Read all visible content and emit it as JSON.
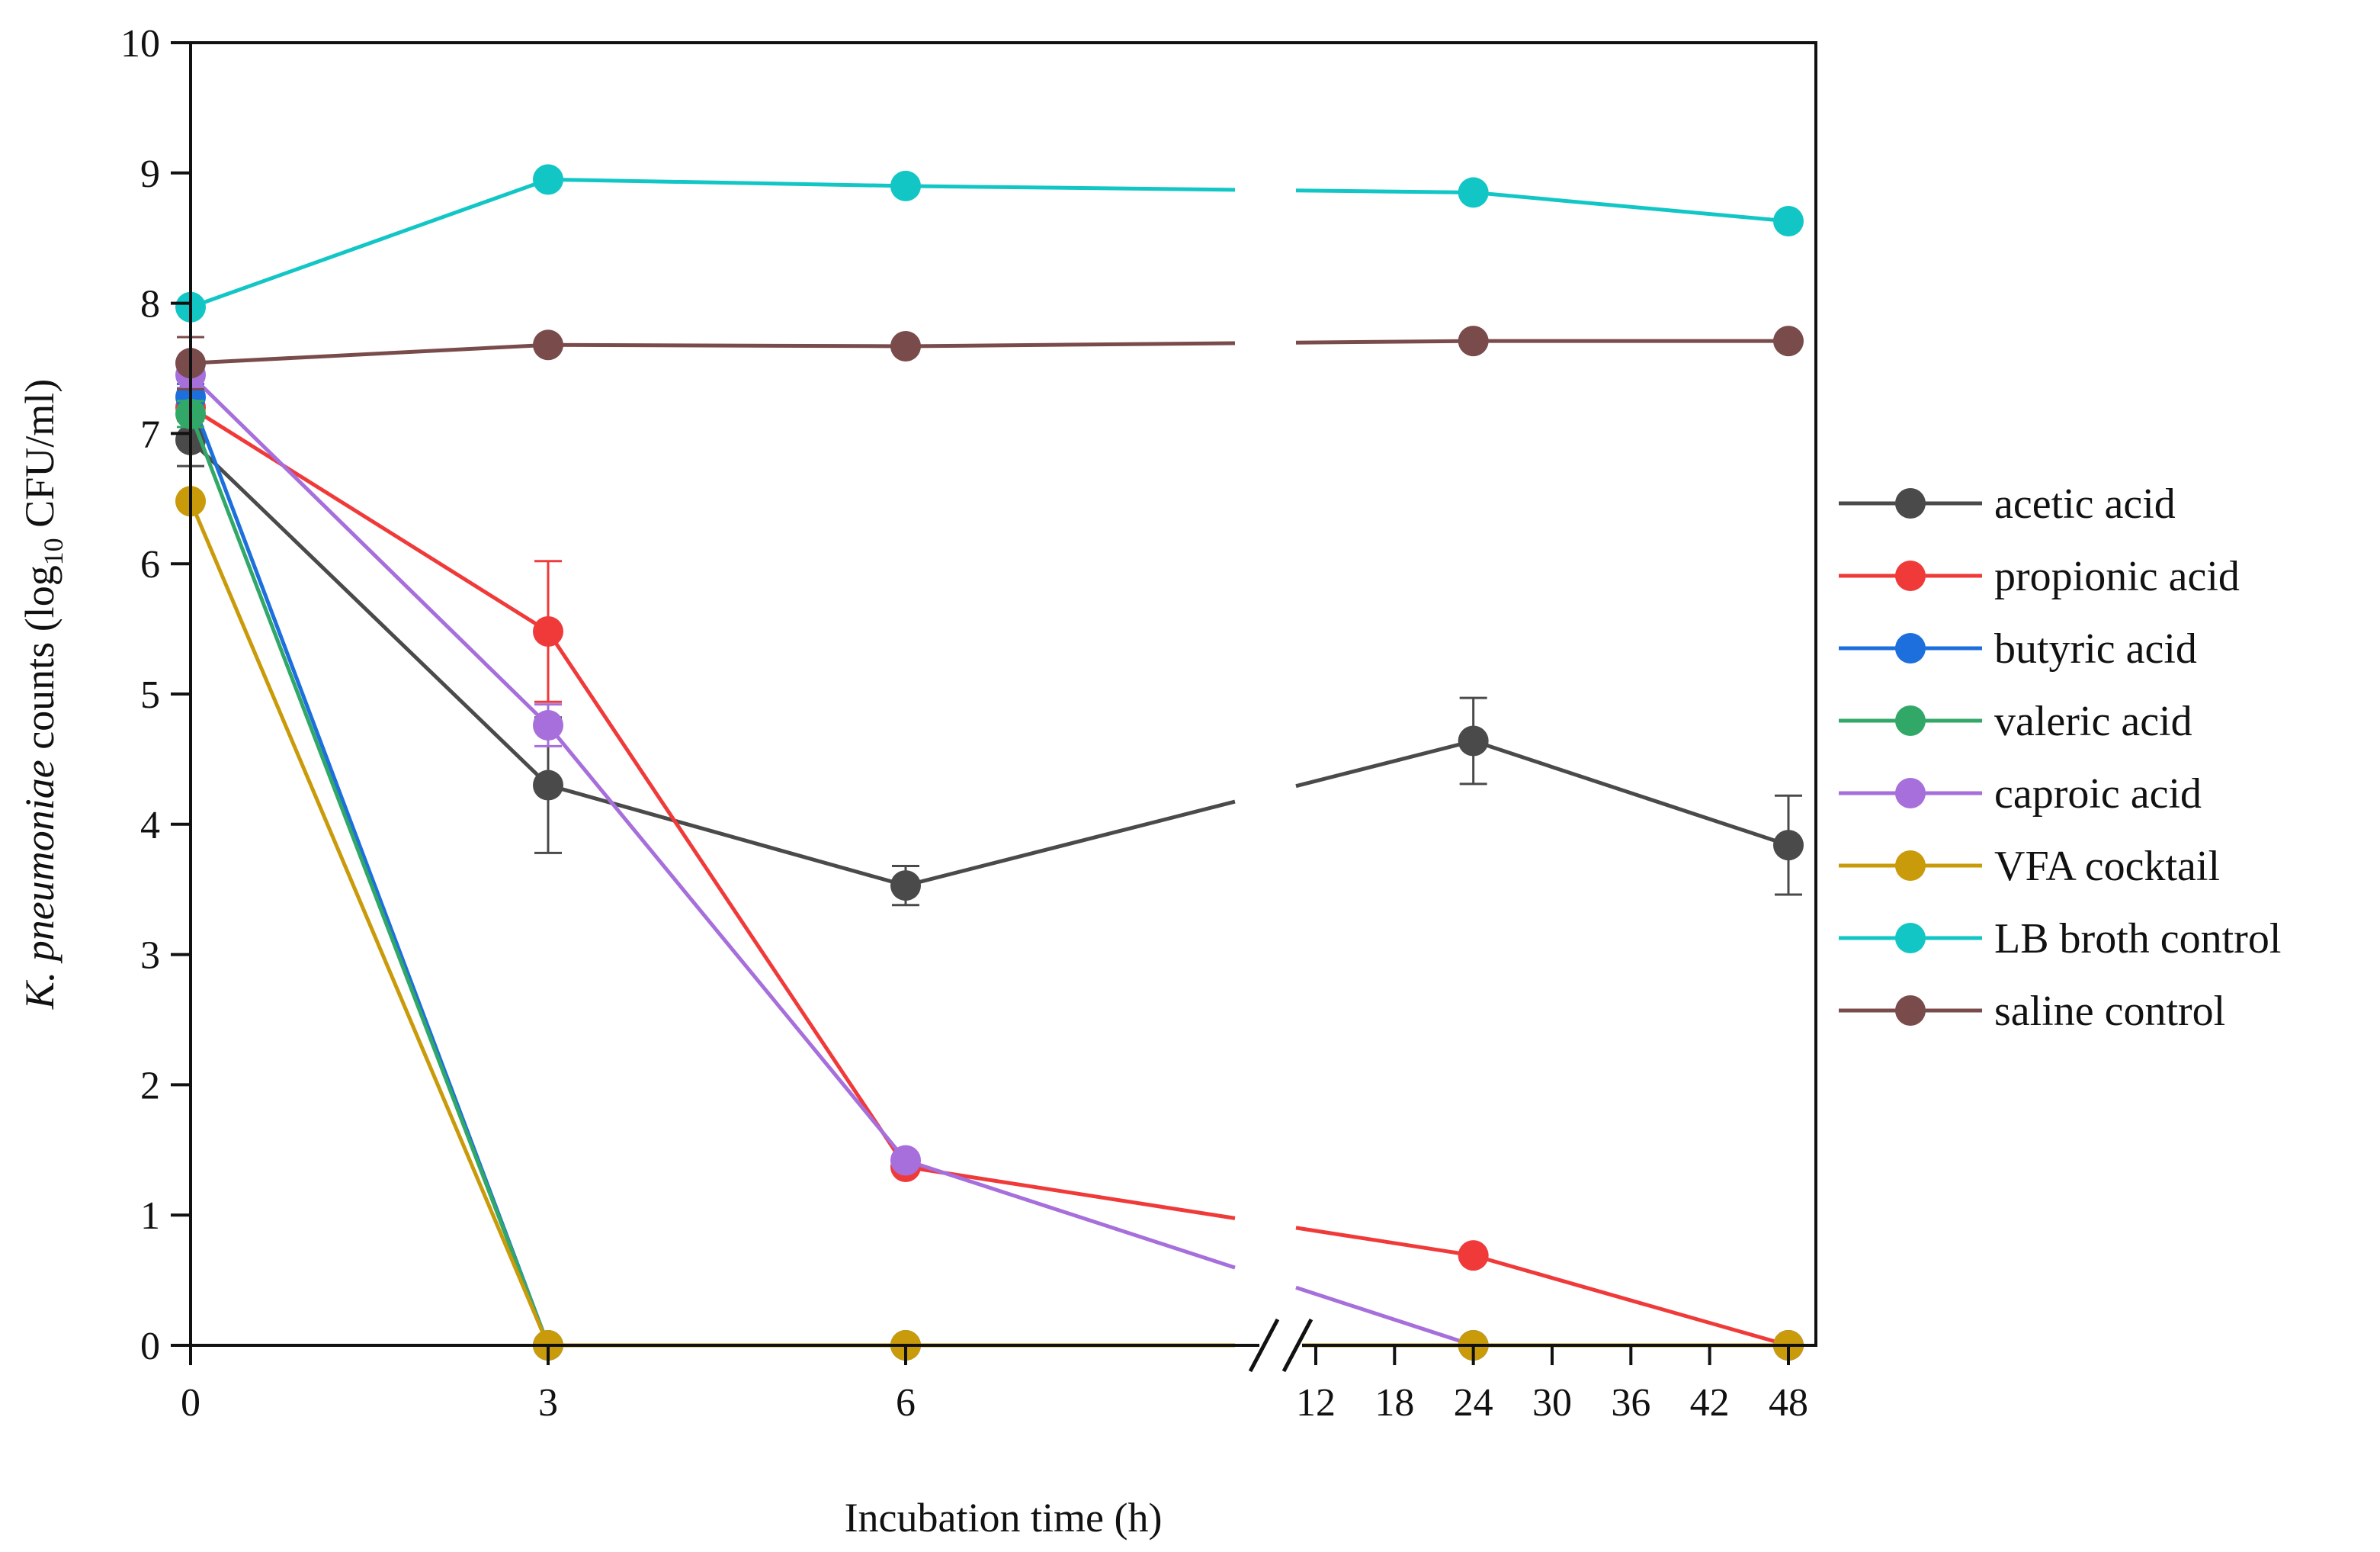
{
  "chart_data": {
    "type": "line",
    "title": "",
    "xlabel": "Incubation time (h)",
    "ylabel": {
      "italic": "K. pneumoniae",
      "pre": " counts (log",
      "sub": "10",
      "post": " CFU/ml)"
    },
    "ylim": [
      0,
      10
    ],
    "yticks": [
      "0",
      "1",
      "2",
      "3",
      "4",
      "5",
      "6",
      "7",
      "8",
      "9",
      "10"
    ],
    "xticks": [
      "0",
      "3",
      "6",
      "12",
      "18",
      "24",
      "30",
      "36",
      "42",
      "48"
    ],
    "x_axis_break": "between 6 and 12 h",
    "x": [
      0,
      3,
      6,
      24,
      48
    ],
    "legend_position": "right",
    "series": [
      {
        "name": "acetic acid",
        "color": "#4a4a4a",
        "values": [
          6.95,
          4.3,
          3.53,
          4.64,
          3.84
        ],
        "errors": [
          0.2,
          0.52,
          0.15,
          0.33,
          0.38
        ]
      },
      {
        "name": "propionic acid",
        "color": "#f03a3a",
        "values": [
          7.2,
          5.48,
          1.37,
          0.69,
          0
        ],
        "errors": [
          0.1,
          0.54,
          0,
          0,
          0
        ]
      },
      {
        "name": "butyric acid",
        "color": "#1c6fdc",
        "values": [
          7.28,
          0,
          0,
          0,
          0
        ],
        "errors": [
          0.1,
          0,
          0,
          0,
          0
        ]
      },
      {
        "name": "valeric acid",
        "color": "#32a868",
        "values": [
          7.15,
          0,
          0,
          0,
          0
        ],
        "errors": [
          0.1,
          0,
          0,
          0,
          0
        ]
      },
      {
        "name": "caproic acid",
        "color": "#a66fdb",
        "values": [
          7.45,
          4.76,
          1.42,
          0,
          0
        ],
        "errors": [
          0.1,
          0.16,
          0,
          0,
          0
        ]
      },
      {
        "name": "VFA cocktail",
        "color": "#c99a0a",
        "values": [
          6.48,
          0,
          0,
          0,
          0
        ],
        "errors": [
          0,
          0,
          0,
          0,
          0
        ]
      },
      {
        "name": "LB broth control",
        "color": "#13c6c6",
        "values": [
          7.97,
          8.95,
          8.9,
          8.85,
          8.63
        ],
        "errors": [
          0,
          0,
          0,
          0,
          0
        ]
      },
      {
        "name": "saline control",
        "color": "#7a4b4b",
        "values": [
          7.54,
          7.68,
          7.67,
          7.71,
          7.71
        ],
        "errors": [
          0.2,
          0,
          0,
          0,
          0
        ]
      }
    ]
  }
}
